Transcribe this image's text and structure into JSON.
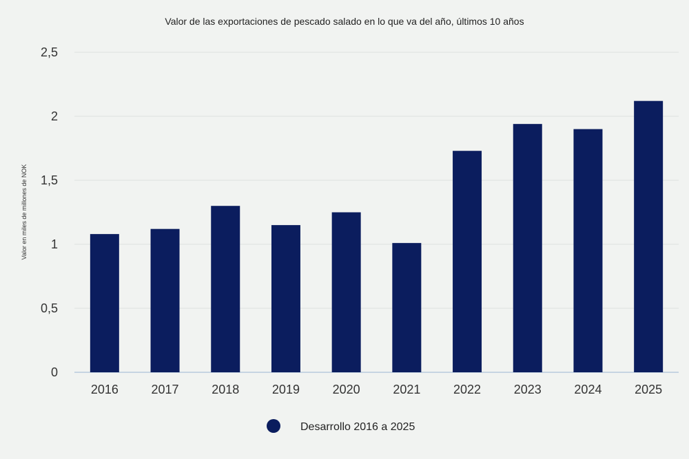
{
  "chart_data": {
    "type": "bar",
    "title": "Valor de las exportaciones de pescado salado en lo que va del año, últimos 10 años",
    "xlabel": "",
    "ylabel": "Valor en miles de millones de NOK",
    "categories": [
      "2016",
      "2017",
      "2018",
      "2019",
      "2020",
      "2021",
      "2022",
      "2023",
      "2024",
      "2025"
    ],
    "series": [
      {
        "name": "Desarrollo 2016 a 2025",
        "values": [
          1.08,
          1.12,
          1.3,
          1.15,
          1.25,
          1.01,
          1.73,
          1.94,
          1.9,
          2.12
        ]
      }
    ],
    "ylim": [
      0,
      2.5
    ],
    "yticks": [
      0,
      0.5,
      1,
      1.5,
      2,
      2.5
    ],
    "ytick_labels": [
      "0",
      "0,5",
      "1",
      "1,5",
      "2",
      "2,5"
    ],
    "grid": true,
    "legend_position": "bottom-center",
    "colors": {
      "bar": "#0b1d5e",
      "grid": "#dde0e0",
      "axis": "#9ab4d3",
      "background": "#f1f3f1"
    }
  }
}
